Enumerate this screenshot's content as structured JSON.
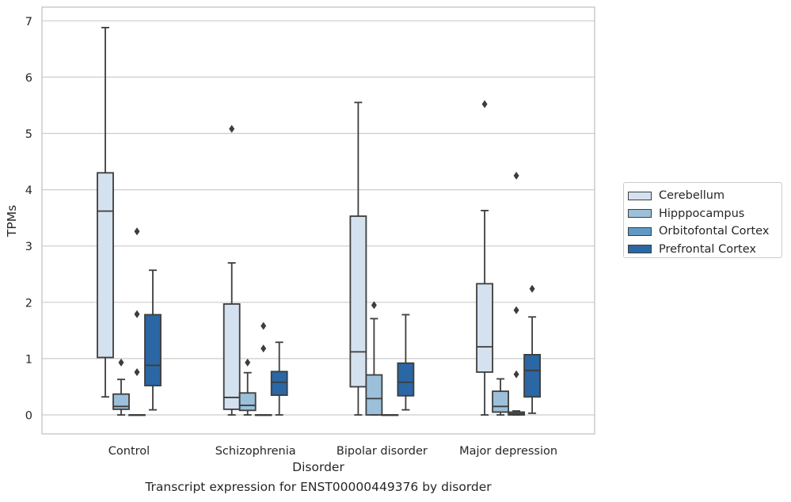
{
  "caption": "Transcript expression for ENST00000449376 by disorder",
  "chart_data": {
    "type": "box",
    "title": "",
    "xlabel": "Disorder",
    "ylabel": "TPMs",
    "ylim": [
      -0.33,
      7.25
    ],
    "yticks": [
      0,
      1,
      2,
      3,
      4,
      5,
      6,
      7
    ],
    "grid": "horizontal",
    "legend_position": "right",
    "categories": [
      "Control",
      "Schizophrenia",
      "Bipolar disorder",
      "Major depression"
    ],
    "series": [
      {
        "name": "Cerebellum",
        "color": "#d4e1ef",
        "boxes": [
          {
            "whislo": 0.32,
            "q1": 1.02,
            "med": 3.62,
            "q3": 4.3,
            "whishi": 6.88,
            "fliers": []
          },
          {
            "whislo": 0.0,
            "q1": 0.1,
            "med": 0.31,
            "q3": 1.97,
            "whishi": 2.7,
            "fliers": [
              5.08
            ]
          },
          {
            "whislo": 0.0,
            "q1": 0.5,
            "med": 1.12,
            "q3": 3.53,
            "whishi": 5.55,
            "fliers": []
          },
          {
            "whislo": 0.0,
            "q1": 0.76,
            "med": 1.21,
            "q3": 2.33,
            "whishi": 3.63,
            "fliers": [
              5.52
            ]
          }
        ]
      },
      {
        "name": "Hipppocampus",
        "color": "#9cc0da",
        "boxes": [
          {
            "whislo": 0.0,
            "q1": 0.1,
            "med": 0.15,
            "q3": 0.37,
            "whishi": 0.63,
            "fliers": [
              0.93
            ]
          },
          {
            "whislo": 0.0,
            "q1": 0.08,
            "med": 0.17,
            "q3": 0.39,
            "whishi": 0.75,
            "fliers": [
              0.93
            ]
          },
          {
            "whislo": 0.0,
            "q1": 0.0,
            "med": 0.29,
            "q3": 0.71,
            "whishi": 1.71,
            "fliers": [
              1.95
            ]
          },
          {
            "whislo": 0.0,
            "q1": 0.05,
            "med": 0.15,
            "q3": 0.42,
            "whishi": 0.64,
            "fliers": []
          }
        ]
      },
      {
        "name": "Orbitofontal Cortex",
        "color": "#5f9ac5",
        "boxes": [
          {
            "whislo": 0.0,
            "q1": 0.0,
            "med": 0.0,
            "q3": 0.0,
            "whishi": 0.0,
            "fliers": [
              0.76,
              1.79,
              3.26
            ]
          },
          {
            "whislo": 0.0,
            "q1": 0.0,
            "med": 0.0,
            "q3": 0.0,
            "whishi": 0.0,
            "fliers": [
              1.18,
              1.58
            ]
          },
          {
            "whislo": 0.0,
            "q1": 0.0,
            "med": 0.0,
            "q3": 0.0,
            "whishi": 0.0,
            "fliers": []
          },
          {
            "whislo": 0.0,
            "q1": 0.0,
            "med": 0.02,
            "q3": 0.05,
            "whishi": 0.07,
            "fliers": [
              0.72,
              1.86,
              4.25
            ]
          }
        ]
      },
      {
        "name": "Prefrontal Cortex",
        "color": "#2a67a4",
        "boxes": [
          {
            "whislo": 0.09,
            "q1": 0.52,
            "med": 0.88,
            "q3": 1.78,
            "whishi": 2.57,
            "fliers": []
          },
          {
            "whislo": 0.0,
            "q1": 0.35,
            "med": 0.58,
            "q3": 0.77,
            "whishi": 1.29,
            "fliers": []
          },
          {
            "whislo": 0.09,
            "q1": 0.34,
            "med": 0.58,
            "q3": 0.92,
            "whishi": 1.78,
            "fliers": []
          },
          {
            "whislo": 0.03,
            "q1": 0.32,
            "med": 0.79,
            "q3": 1.07,
            "whishi": 1.74,
            "fliers": [
              2.24
            ]
          }
        ]
      }
    ]
  }
}
